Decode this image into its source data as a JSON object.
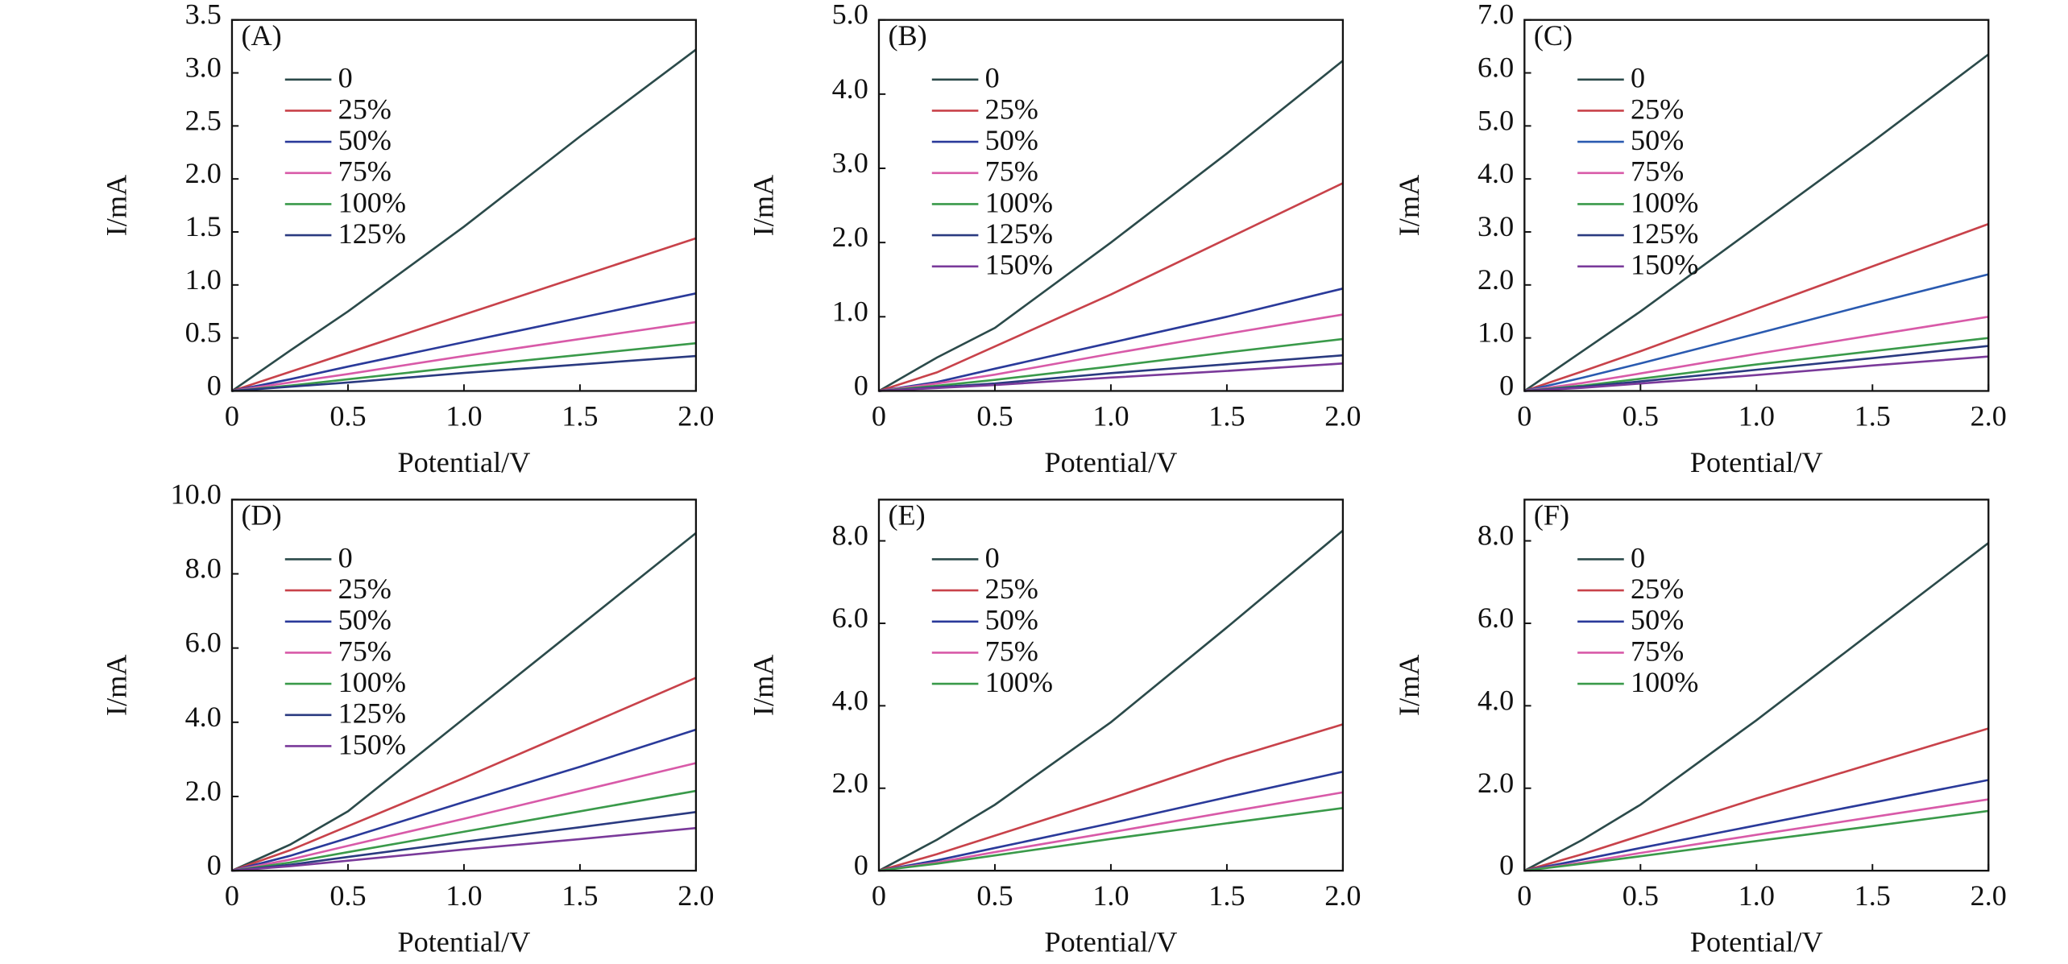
{
  "chart_data": [
    {
      "type": "line",
      "label": "(A)",
      "xlabel": "Potential/V",
      "ylabel": "I/mA",
      "x": [
        0,
        0.25,
        0.5,
        1.0,
        1.5,
        2.0
      ],
      "xlim": [
        0,
        2
      ],
      "xticks": [
        0,
        0.5,
        {
          "value": 1,
          "label": "1.0"
        },
        1.5,
        {
          "value": 2,
          "label": "2.0"
        }
      ],
      "ylim": [
        0,
        3.5
      ],
      "yticks": [
        0,
        0.5,
        {
          "value": 1,
          "label": "1.0"
        },
        1.5,
        {
          "value": 2,
          "label": "2.0"
        },
        2.5,
        {
          "value": 3,
          "label": "3.0"
        },
        3.5
      ],
      "series": [
        {
          "name": "0",
          "color": "#2b4a4a",
          "values": [
            0,
            0.38,
            0.75,
            1.55,
            2.4,
            3.22
          ]
        },
        {
          "name": "25%",
          "color": "#c8424a",
          "values": [
            0,
            0.18,
            0.36,
            0.72,
            1.08,
            1.44
          ]
        },
        {
          "name": "50%",
          "color": "#2a3a9a",
          "values": [
            0,
            0.11,
            0.23,
            0.46,
            0.69,
            0.92
          ]
        },
        {
          "name": "75%",
          "color": "#d85aa8",
          "values": [
            0,
            0.08,
            0.16,
            0.33,
            0.49,
            0.65
          ]
        },
        {
          "name": "100%",
          "color": "#3a9a4a",
          "values": [
            0,
            0.05,
            0.11,
            0.23,
            0.34,
            0.45
          ]
        },
        {
          "name": "125%",
          "color": "#2a3a80",
          "values": [
            0,
            0.04,
            0.08,
            0.17,
            0.25,
            0.33
          ]
        }
      ]
    },
    {
      "type": "line",
      "label": "(B)",
      "xlabel": "Potential/V",
      "ylabel": "I/mA",
      "x": [
        0,
        0.25,
        0.5,
        1.0,
        1.5,
        2.0
      ],
      "xlim": [
        0,
        2
      ],
      "xticks": [
        0,
        0.5,
        {
          "value": 1,
          "label": "1.0"
        },
        1.5,
        {
          "value": 2,
          "label": "2.0"
        }
      ],
      "ylim": [
        0,
        5
      ],
      "yticks": [
        0,
        {
          "value": 1,
          "label": "1.0"
        },
        {
          "value": 2,
          "label": "2.0"
        },
        {
          "value": 3,
          "label": "3.0"
        },
        {
          "value": 4,
          "label": "4.0"
        },
        {
          "value": 5,
          "label": "5.0"
        }
      ],
      "series": [
        {
          "name": "0",
          "color": "#2b4a4a",
          "values": [
            0,
            0.45,
            0.85,
            2.0,
            3.2,
            4.45
          ]
        },
        {
          "name": "25%",
          "color": "#c8424a",
          "values": [
            0,
            0.25,
            0.6,
            1.3,
            2.05,
            2.8
          ]
        },
        {
          "name": "50%",
          "color": "#2a3a9a",
          "values": [
            0,
            0.12,
            0.3,
            0.65,
            1.0,
            1.38
          ]
        },
        {
          "name": "75%",
          "color": "#d85aa8",
          "values": [
            0,
            0.1,
            0.22,
            0.5,
            0.77,
            1.03
          ]
        },
        {
          "name": "100%",
          "color": "#3a9a4a",
          "values": [
            0,
            0.07,
            0.15,
            0.33,
            0.52,
            0.7
          ]
        },
        {
          "name": "125%",
          "color": "#2a3a80",
          "values": [
            0,
            0.05,
            0.1,
            0.24,
            0.36,
            0.48
          ]
        },
        {
          "name": "150%",
          "color": "#7a3a9a",
          "values": [
            0,
            0.04,
            0.08,
            0.18,
            0.27,
            0.37
          ]
        }
      ]
    },
    {
      "type": "line",
      "label": "(C)",
      "xlabel": "Potential/V",
      "ylabel": "I/mA",
      "x": [
        0,
        0.25,
        0.5,
        1.0,
        1.5,
        2.0
      ],
      "xlim": [
        0,
        2
      ],
      "xticks": [
        0,
        0.5,
        {
          "value": 1,
          "label": "1.0"
        },
        1.5,
        {
          "value": 2,
          "label": "2.0"
        }
      ],
      "ylim": [
        0,
        7
      ],
      "yticks": [
        0,
        {
          "value": 1,
          "label": "1.0"
        },
        {
          "value": 2,
          "label": "2.0"
        },
        {
          "value": 3,
          "label": "3.0"
        },
        {
          "value": 4,
          "label": "4.0"
        },
        {
          "value": 5,
          "label": "5.0"
        },
        {
          "value": 6,
          "label": "6.0"
        },
        {
          "value": 7,
          "label": "7.0"
        }
      ],
      "series": [
        {
          "name": "0",
          "color": "#2b4a4a",
          "values": [
            0,
            0.75,
            1.5,
            3.1,
            4.7,
            6.35
          ]
        },
        {
          "name": "25%",
          "color": "#c8424a",
          "values": [
            0,
            0.37,
            0.75,
            1.55,
            2.35,
            3.15
          ]
        },
        {
          "name": "50%",
          "color": "#2a5ab0",
          "values": [
            0,
            0.25,
            0.52,
            1.08,
            1.65,
            2.2
          ]
        },
        {
          "name": "75%",
          "color": "#d85aa8",
          "values": [
            0,
            0.15,
            0.33,
            0.7,
            1.05,
            1.4
          ]
        },
        {
          "name": "100%",
          "color": "#3a9a4a",
          "values": [
            0,
            0.1,
            0.23,
            0.5,
            0.75,
            1.0
          ]
        },
        {
          "name": "125%",
          "color": "#2a3a80",
          "values": [
            0,
            0.08,
            0.18,
            0.4,
            0.62,
            0.85
          ]
        },
        {
          "name": "150%",
          "color": "#7a3a9a",
          "values": [
            0,
            0.06,
            0.14,
            0.3,
            0.48,
            0.65
          ]
        }
      ]
    },
    {
      "type": "line",
      "label": "(D)",
      "xlabel": "Potential/V",
      "ylabel": "I/mA",
      "x": [
        0,
        0.25,
        0.5,
        1.0,
        1.5,
        2.0
      ],
      "xlim": [
        0,
        2
      ],
      "xticks": [
        0,
        0.5,
        {
          "value": 1,
          "label": "1.0"
        },
        1.5,
        {
          "value": 2,
          "label": "2.0"
        }
      ],
      "ylim": [
        0,
        10
      ],
      "yticks": [
        0,
        {
          "value": 2,
          "label": "2.0"
        },
        {
          "value": 4,
          "label": "4.0"
        },
        {
          "value": 6,
          "label": "6.0"
        },
        {
          "value": 8,
          "label": "8.0"
        },
        {
          "value": 10,
          "label": "10.0"
        }
      ],
      "series": [
        {
          "name": "0",
          "color": "#2b4a4a",
          "values": [
            0,
            0.7,
            1.6,
            4.1,
            6.6,
            9.1
          ]
        },
        {
          "name": "25%",
          "color": "#c8424a",
          "values": [
            0,
            0.55,
            1.2,
            2.5,
            3.85,
            5.2
          ]
        },
        {
          "name": "50%",
          "color": "#2a3a9a",
          "values": [
            0,
            0.4,
            0.88,
            1.85,
            2.8,
            3.8
          ]
        },
        {
          "name": "75%",
          "color": "#d85aa8",
          "values": [
            0,
            0.3,
            0.67,
            1.4,
            2.15,
            2.9
          ]
        },
        {
          "name": "100%",
          "color": "#3a9a4a",
          "values": [
            0,
            0.22,
            0.5,
            1.05,
            1.6,
            2.15
          ]
        },
        {
          "name": "125%",
          "color": "#2a3a80",
          "values": [
            0,
            0.16,
            0.37,
            0.78,
            1.17,
            1.58
          ]
        },
        {
          "name": "150%",
          "color": "#7a3a9a",
          "values": [
            0,
            0.12,
            0.27,
            0.57,
            0.85,
            1.15
          ]
        }
      ]
    },
    {
      "type": "line",
      "label": "(E)",
      "xlabel": "Potential/V",
      "ylabel": "I/mA",
      "x": [
        0,
        0.25,
        0.5,
        1.0,
        1.5,
        2.0
      ],
      "xlim": [
        0,
        2
      ],
      "xticks": [
        0,
        0.5,
        {
          "value": 1,
          "label": "1.0"
        },
        1.5,
        {
          "value": 2,
          "label": "2.0"
        }
      ],
      "ylim": [
        0,
        9
      ],
      "yticks": [
        0,
        {
          "value": 2,
          "label": "2.0"
        },
        {
          "value": 4,
          "label": "4.0"
        },
        {
          "value": 6,
          "label": "6.0"
        },
        {
          "value": 8,
          "label": "8.0"
        }
      ],
      "series": [
        {
          "name": "0",
          "color": "#2b4a4a",
          "values": [
            0,
            0.75,
            1.6,
            3.6,
            5.9,
            8.25
          ]
        },
        {
          "name": "25%",
          "color": "#c8424a",
          "values": [
            0,
            0.4,
            0.85,
            1.75,
            2.7,
            3.55
          ]
        },
        {
          "name": "50%",
          "color": "#2a3a9a",
          "values": [
            0,
            0.25,
            0.55,
            1.15,
            1.78,
            2.4
          ]
        },
        {
          "name": "75%",
          "color": "#d85aa8",
          "values": [
            0,
            0.2,
            0.45,
            0.93,
            1.42,
            1.9
          ]
        },
        {
          "name": "100%",
          "color": "#3a9a4a",
          "values": [
            0,
            0.17,
            0.37,
            0.77,
            1.15,
            1.52
          ]
        }
      ]
    },
    {
      "type": "line",
      "label": "(F)",
      "xlabel": "Potential/V",
      "ylabel": "I/mA",
      "x": [
        0,
        0.25,
        0.5,
        1.0,
        1.5,
        2.0
      ],
      "xlim": [
        0,
        2
      ],
      "xticks": [
        0,
        0.5,
        {
          "value": 1,
          "label": "1.0"
        },
        1.5,
        {
          "value": 2,
          "label": "2.0"
        }
      ],
      "ylim": [
        0,
        9
      ],
      "yticks": [
        0,
        {
          "value": 2,
          "label": "2.0"
        },
        {
          "value": 4,
          "label": "4.0"
        },
        {
          "value": 6,
          "label": "6.0"
        },
        {
          "value": 8,
          "label": "8.0"
        }
      ],
      "series": [
        {
          "name": "0",
          "color": "#2b4a4a",
          "values": [
            0,
            0.75,
            1.6,
            3.65,
            5.8,
            7.95
          ]
        },
        {
          "name": "25%",
          "color": "#c8424a",
          "values": [
            0,
            0.4,
            0.85,
            1.75,
            2.6,
            3.45
          ]
        },
        {
          "name": "50%",
          "color": "#2a3a9a",
          "values": [
            0,
            0.27,
            0.55,
            1.1,
            1.65,
            2.2
          ]
        },
        {
          "name": "75%",
          "color": "#d85aa8",
          "values": [
            0,
            0.2,
            0.43,
            0.87,
            1.3,
            1.73
          ]
        },
        {
          "name": "100%",
          "color": "#3a9a4a",
          "values": [
            0,
            0.17,
            0.35,
            0.72,
            1.08,
            1.45
          ]
        }
      ]
    }
  ]
}
